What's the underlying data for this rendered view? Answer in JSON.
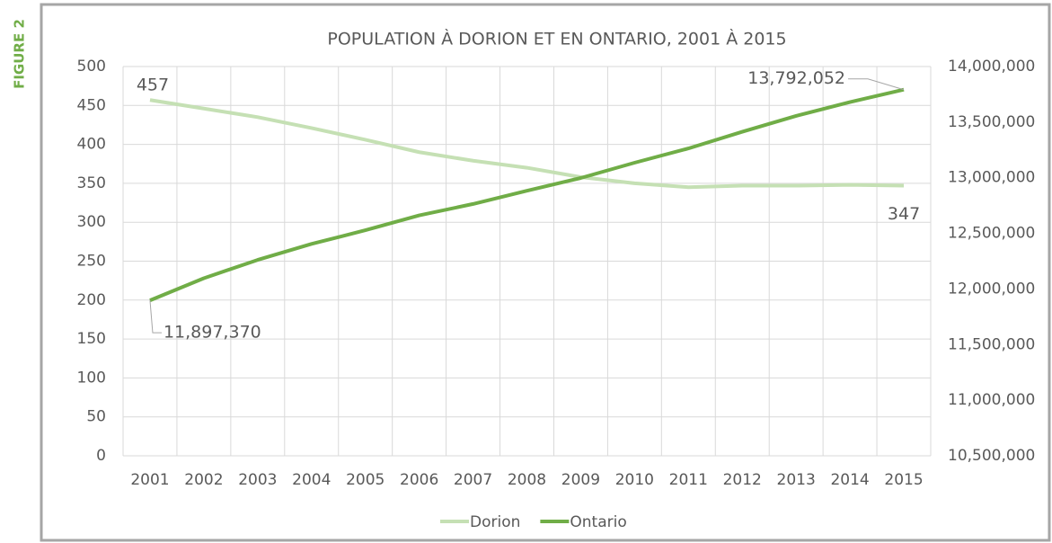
{
  "figure_label": "FIGURE 2",
  "chart_data": {
    "type": "line",
    "title": "POPULATION À DORION ET EN ONTARIO, 2001 À 2015",
    "categories": [
      "2001",
      "2002",
      "2003",
      "2004",
      "2005",
      "2006",
      "2007",
      "2008",
      "2009",
      "2010",
      "2011",
      "2012",
      "2013",
      "2014",
      "2015"
    ],
    "series": [
      {
        "name": "Dorion",
        "color": "#c5e0b4",
        "axis": "y",
        "values": [
          457,
          446,
          435,
          421,
          406,
          390,
          379,
          370,
          358,
          350,
          345,
          347,
          347,
          348,
          347
        ],
        "value_labels": [
          "457",
          null,
          null,
          null,
          null,
          null,
          null,
          null,
          null,
          null,
          null,
          null,
          null,
          null,
          "347"
        ]
      },
      {
        "name": "Ontario",
        "color": "#70ad47",
        "axis": "y2",
        "values": [
          11897370,
          12096627,
          12261380,
          12404780,
          12527990,
          12661566,
          12764195,
          12882625,
          12997687,
          13135063,
          13263544,
          13413702,
          13555754,
          13680425,
          13792052
        ],
        "value_labels": [
          "11,897,370",
          null,
          null,
          null,
          null,
          null,
          null,
          null,
          null,
          null,
          null,
          null,
          null,
          null,
          "13,792,052"
        ]
      }
    ],
    "ylim": [
      0,
      500
    ],
    "yticks": [
      0,
      50,
      100,
      150,
      200,
      250,
      300,
      350,
      400,
      450,
      500
    ],
    "y2lim": [
      10500000,
      14000000
    ],
    "y2ticks": [
      {
        "value": 10500000,
        "label": "10,500,000"
      },
      {
        "value": 11000000,
        "label": "11,000,000"
      },
      {
        "value": 11500000,
        "label": "11,500,000"
      },
      {
        "value": 12000000,
        "label": "12,000,000"
      },
      {
        "value": 12500000,
        "label": "12,500,000"
      },
      {
        "value": 13000000,
        "label": "13,000,000"
      },
      {
        "value": 13500000,
        "label": "13,500,000"
      },
      {
        "value": 14000000,
        "label": "14,000,000"
      }
    ],
    "grid": true,
    "legend": "bottom"
  }
}
